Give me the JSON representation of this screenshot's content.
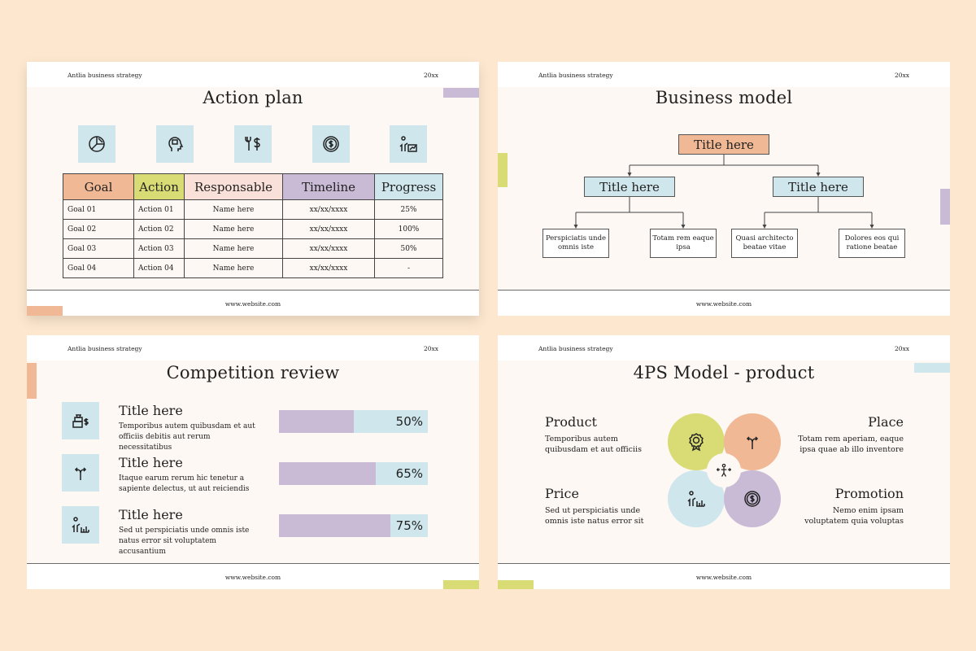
{
  "common": {
    "brand": "Antlia business strategy",
    "year": "20xx",
    "url": "www.website.com"
  },
  "colors": {
    "background": "#fde8cf",
    "slide": "#fdf8f3",
    "peach": "#f0b894",
    "lime": "#d9db74",
    "pink": "#f9e0d8",
    "lavender": "#c9bbd6",
    "blue": "#cfe6ec"
  },
  "action_plan": {
    "title": "Action plan",
    "icons": [
      "pie-chart-icon",
      "head-idea-icon",
      "tools-dollar-icon",
      "coin-icon",
      "presentation-growth-icon"
    ],
    "headers": [
      "Goal",
      "Action",
      "Responsable",
      "Timeline",
      "Progress"
    ],
    "rows": [
      [
        "Goal 01",
        "Action 01",
        "Name here",
        "xx/xx/xxxx",
        "25%"
      ],
      [
        "Goal 02",
        "Action 02",
        "Name here",
        "xx/xx/xxxx",
        "100%"
      ],
      [
        "Goal 03",
        "Action 03",
        "Name here",
        "xx/xx/xxxx",
        "50%"
      ],
      [
        "Goal 04",
        "Action 04",
        "Name here",
        "xx/xx/xxxx",
        "-"
      ]
    ]
  },
  "business_model": {
    "title": "Business model",
    "root": "Title here",
    "branches": [
      {
        "label": "Title here",
        "leaves": [
          "Perspiciatis unde omnis iste",
          "Totam rem eaque ipsa"
        ]
      },
      {
        "label": "Title here",
        "leaves": [
          "Quasi architecto beatae vitae",
          "Dolores eos qui ratione beatae"
        ]
      }
    ]
  },
  "competition_review": {
    "title": "Competition review",
    "items": [
      {
        "icon": "money-stack-icon",
        "title": "Title here",
        "desc": "Temporibus autem quibusdam et aut officiis debitis aut rerum necessitatibus",
        "percent": 50,
        "percent_label": "50%"
      },
      {
        "icon": "direction-arrows-icon",
        "title": "Title here",
        "desc": "Itaque earum rerum hic tenetur a sapiente delectus, ut aut reiciendis",
        "percent": 65,
        "percent_label": "65%"
      },
      {
        "icon": "presenter-chart-icon",
        "title": "Title here",
        "desc": "Sed ut perspiciatis unde omnis iste natus error sit voluptatem accusantium",
        "percent": 75,
        "percent_label": "75%"
      }
    ]
  },
  "four_ps": {
    "title": "4PS Model - product",
    "product": {
      "label": "Product",
      "desc_lines": [
        "Temporibus autem",
        "quibusdam et aut officiis"
      ]
    },
    "place": {
      "label": "Place",
      "desc_lines": [
        "Totam rem aperiam, eaque",
        "ipsa quae ab illo inventore"
      ]
    },
    "price": {
      "label": "Price",
      "desc_lines": [
        "Sed ut perspiciatis unde",
        "omnis iste natus error sit"
      ]
    },
    "promotion": {
      "label": "Promotion",
      "desc_lines": [
        "Nemo enim ipsam",
        "voluptatem quia voluptas"
      ]
    },
    "circle_icons": [
      "award-badge-icon",
      "direction-arrows-icon",
      "presenter-chart-icon",
      "coin-icon",
      "person-arrows-icon"
    ]
  }
}
